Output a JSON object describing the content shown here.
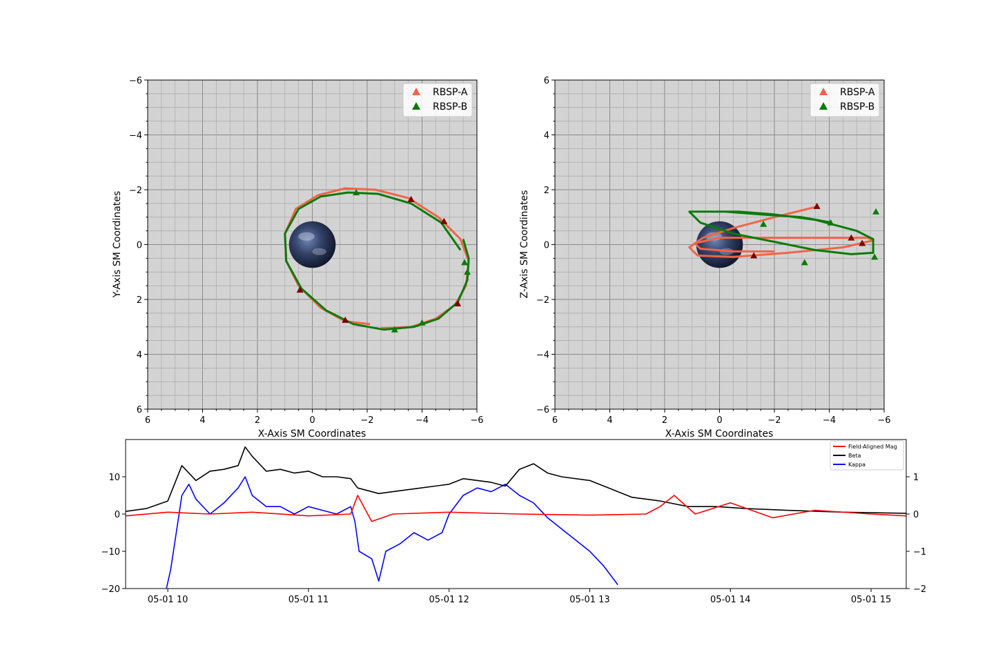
{
  "chart_data": [
    {
      "type": "line",
      "xlabel": "X-Axis SM Coordinates",
      "ylabel": "Y-Axis SM Coordinates",
      "xlim": [
        6,
        -6
      ],
      "ylim": [
        6,
        -6
      ],
      "xticks": [
        6,
        4,
        2,
        0,
        -2,
        -4,
        -6
      ],
      "yticks": [
        -6,
        -4,
        -2,
        0,
        2,
        4,
        6
      ],
      "grid": true,
      "background": "#d3d3d3",
      "legend_placement": "top-right",
      "legend": [
        "RBSP-A",
        "RBSP-B"
      ],
      "colors": {
        "RBSP-A": "#f06449",
        "RBSP-B": "#0a7a0a",
        "arrow": "#7a0000"
      },
      "earth": {
        "x": 0,
        "y": 0,
        "radius": 0.85
      },
      "series": [
        {
          "name": "RBSP-A",
          "x": [
            -2.1,
            -1.2,
            -0.3,
            0.5,
            0.95,
            1.0,
            0.6,
            -0.2,
            -1.2,
            -2.3,
            -3.5,
            -4.6,
            -5.4,
            -5.7,
            -5.6,
            -5.2,
            -4.5,
            -3.6,
            -2.5
          ],
          "y": [
            2.9,
            2.8,
            2.3,
            1.5,
            0.6,
            -0.4,
            -1.3,
            -1.8,
            -2.05,
            -2.0,
            -1.7,
            -1.0,
            -0.2,
            0.6,
            1.5,
            2.2,
            2.7,
            3.0,
            3.05
          ]
        },
        {
          "name": "RBSP-B",
          "x": [
            -5.5,
            -5.7,
            -5.65,
            -5.3,
            -4.6,
            -3.7,
            -2.6,
            -1.5,
            -0.5,
            0.4,
            0.95,
            1.0,
            0.5,
            -0.3,
            -1.3,
            -2.4,
            -3.6,
            -4.7,
            -5.4
          ],
          "y": [
            -0.2,
            0.5,
            1.3,
            2.1,
            2.7,
            3.0,
            3.1,
            2.9,
            2.4,
            1.6,
            0.6,
            -0.4,
            -1.3,
            -1.75,
            -1.9,
            -1.85,
            -1.5,
            -0.8,
            0.2
          ]
        }
      ],
      "arrows": [
        {
          "series": "RBSP-A",
          "x": -3.6,
          "y": -1.65
        },
        {
          "series": "RBSP-A",
          "x": -4.8,
          "y": -0.85
        },
        {
          "series": "RBSP-A",
          "x": -5.3,
          "y": 2.15
        },
        {
          "series": "RBSP-A",
          "x": -1.2,
          "y": 2.75
        },
        {
          "series": "RBSP-A",
          "x": 0.45,
          "y": 1.65
        },
        {
          "series": "RBSP-B",
          "x": -1.6,
          "y": -1.9
        },
        {
          "series": "RBSP-B",
          "x": -3.0,
          "y": 3.1
        },
        {
          "series": "RBSP-B",
          "x": -4.0,
          "y": 2.85
        },
        {
          "series": "RBSP-B",
          "x": -5.55,
          "y": 0.65
        },
        {
          "series": "RBSP-B",
          "x": -5.65,
          "y": 1.0
        }
      ]
    },
    {
      "type": "line",
      "xlabel": "X-Axis SM Coordinates",
      "ylabel": "Z-Axis SM Coordinates",
      "xlim": [
        6,
        -6
      ],
      "ylim": [
        -6,
        6
      ],
      "xticks": [
        6,
        4,
        2,
        0,
        -2,
        -4,
        -6
      ],
      "yticks": [
        6,
        4,
        2,
        0,
        -2,
        -4,
        -6
      ],
      "grid": true,
      "background": "#d3d3d3",
      "legend_placement": "top-right",
      "legend": [
        "RBSP-A",
        "RBSP-B"
      ],
      "colors": {
        "RBSP-A": "#f06449",
        "RBSP-B": "#0a7a0a",
        "arrow": "#7a0000"
      },
      "earth": {
        "x": 0,
        "y": 0,
        "radius": 0.85
      },
      "series": [
        {
          "name": "RBSP-A",
          "x": [
            -3.6,
            -2.0,
            -0.5,
            0.6,
            1.1,
            0.8,
            -0.5,
            -2.5,
            -4.5,
            -5.6,
            -5.4,
            -4.0,
            -2.0,
            0.0,
            0.9,
            0.7,
            -0.5,
            -2.0
          ],
          "y": [
            1.4,
            1.0,
            0.6,
            0.25,
            -0.1,
            -0.4,
            -0.45,
            -0.3,
            -0.1,
            0.15,
            0.25,
            0.25,
            0.25,
            0.25,
            0.05,
            -0.15,
            -0.25,
            -0.25
          ]
        },
        {
          "name": "RBSP-B",
          "x": [
            -4.1,
            -3.0,
            -1.5,
            -0.2,
            0.8,
            1.1,
            0.7,
            -0.5,
            -2.0,
            -3.5,
            -4.8,
            -5.6,
            -5.6,
            -5.0,
            -3.5,
            -2.0,
            -0.7,
            0.3
          ],
          "y": [
            0.8,
            1.0,
            1.1,
            1.2,
            1.2,
            1.2,
            0.8,
            0.4,
            0.1,
            -0.2,
            -0.35,
            -0.3,
            0.2,
            0.5,
            0.9,
            1.1,
            1.2,
            1.2
          ]
        }
      ],
      "arrows": [
        {
          "series": "RBSP-A",
          "x": -3.55,
          "y": 1.4
        },
        {
          "series": "RBSP-A",
          "x": -4.8,
          "y": 0.25
        },
        {
          "series": "RBSP-A",
          "x": -5.2,
          "y": 0.05
        },
        {
          "series": "RBSP-A",
          "x": -1.25,
          "y": -0.4
        },
        {
          "series": "RBSP-B",
          "x": -5.7,
          "y": 1.2
        },
        {
          "series": "RBSP-B",
          "x": -4.05,
          "y": 0.8
        },
        {
          "series": "RBSP-B",
          "x": -1.6,
          "y": 0.75
        },
        {
          "series": "RBSP-B",
          "x": -3.1,
          "y": -0.65
        },
        {
          "series": "RBSP-B",
          "x": -5.65,
          "y": -0.45
        }
      ]
    },
    {
      "type": "line",
      "xlabel": "",
      "ylabel": "",
      "xlim_hours": [
        9.7,
        15.25
      ],
      "xticks": [
        "05-01 10",
        "05-01 11",
        "05-01 12",
        "05-01 13",
        "05-01 14",
        "05-01 15"
      ],
      "xtick_hours": [
        10,
        11,
        12,
        13,
        14,
        15
      ],
      "ylim": [
        -20,
        20
      ],
      "yticks": [
        -20,
        -10,
        0,
        10
      ],
      "ylim_right": [
        -2,
        2
      ],
      "yticks_right": [
        -2,
        -1,
        0,
        1
      ],
      "legend_placement": "top-right",
      "series": [
        {
          "name": "Field-Aligned Mag",
          "color": "#ff0000",
          "axis": "left",
          "hours": [
            9.7,
            10.0,
            10.3,
            10.6,
            11.0,
            11.3,
            11.35,
            11.45,
            11.6,
            12.0,
            12.5,
            13.0,
            13.4,
            13.5,
            13.6,
            13.75,
            14.0,
            14.3,
            14.6,
            15.0,
            15.25
          ],
          "values": [
            -0.5,
            0.5,
            0,
            0.5,
            -0.5,
            0,
            5,
            -2,
            0,
            0.5,
            0,
            -0.3,
            0,
            2,
            5,
            0,
            3,
            -1,
            1,
            0,
            -0.5
          ]
        },
        {
          "name": "Beta",
          "color": "#000000",
          "axis": "right",
          "hours": [
            9.7,
            9.85,
            10.0,
            10.1,
            10.2,
            10.3,
            10.4,
            10.5,
            10.55,
            10.6,
            10.7,
            10.8,
            10.9,
            11.0,
            11.1,
            11.2,
            11.3,
            11.35,
            11.5,
            11.6,
            11.8,
            12.0,
            12.1,
            12.3,
            12.4,
            12.5,
            12.6,
            12.7,
            12.8,
            13.0,
            13.2,
            13.3,
            13.5,
            13.7,
            13.9,
            14.1,
            14.4,
            14.8,
            15.25
          ],
          "values": [
            0.07,
            0.15,
            0.35,
            1.3,
            0.9,
            1.15,
            1.2,
            1.3,
            1.8,
            1.55,
            1.15,
            1.2,
            1.1,
            1.15,
            1.0,
            1.0,
            0.95,
            0.7,
            0.55,
            0.6,
            0.7,
            0.8,
            0.95,
            0.85,
            0.75,
            1.2,
            1.35,
            1.1,
            1.0,
            0.9,
            0.6,
            0.45,
            0.35,
            0.2,
            0.2,
            0.15,
            0.1,
            0.05,
            0.02
          ]
        },
        {
          "name": "Kappa",
          "color": "#0000ff",
          "axis": "left",
          "hours": [
            9.99,
            10.02,
            10.06,
            10.1,
            10.15,
            10.2,
            10.3,
            10.4,
            10.5,
            10.55,
            10.6,
            10.7,
            10.8,
            10.9,
            11.0,
            11.1,
            11.2,
            11.3,
            11.33,
            11.36,
            11.45,
            11.5,
            11.55,
            11.65,
            11.75,
            11.85,
            11.95,
            12.0,
            12.1,
            12.2,
            12.3,
            12.4,
            12.5,
            12.6,
            12.7,
            12.8,
            12.9,
            13.0,
            13.1,
            13.2
          ],
          "values": [
            -20,
            -15,
            -5,
            5,
            8,
            4,
            0,
            3,
            7,
            10,
            5,
            2,
            2,
            0,
            2,
            1,
            0,
            2,
            -2,
            -10,
            -12,
            -18,
            -10,
            -8,
            -5,
            -7,
            -5,
            0,
            5,
            7,
            6,
            8,
            5,
            3,
            -1,
            -4,
            -7,
            -10,
            -14,
            -19
          ]
        }
      ]
    }
  ]
}
